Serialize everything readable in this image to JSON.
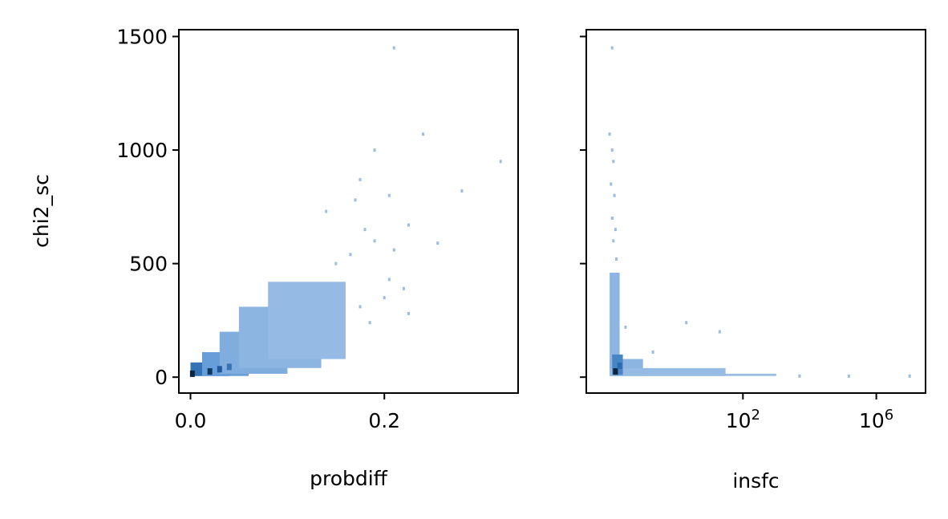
{
  "colors": {
    "background": "#ffffff",
    "bin_low": "#b3cdea",
    "bin_mid": "#5f98d6",
    "bin_high": "#1f5fa6",
    "bin_peak": "#0b2540"
  },
  "chart_data": [
    {
      "type": "heatmap",
      "xlabel": "probdiff",
      "ylabel": "chi2_sc",
      "xlim": [
        -0.012,
        0.338
      ],
      "ylim": [
        -70,
        1530
      ],
      "x_ticks": [
        {
          "value": 0.0,
          "label": "0.0"
        },
        {
          "value": 0.2,
          "label": "0.2"
        }
      ],
      "y_ticks": [
        {
          "value": 0,
          "label": "0"
        },
        {
          "value": 500,
          "label": "500"
        },
        {
          "value": 1000,
          "label": "1000"
        },
        {
          "value": 1500,
          "label": "1500"
        }
      ],
      "regions": [
        {
          "x0": 0.0,
          "x1": 0.04,
          "y0": 5,
          "y1": 65,
          "level": 0.55
        },
        {
          "x0": 0.012,
          "x1": 0.06,
          "y0": 5,
          "y1": 110,
          "level": 0.3
        },
        {
          "x0": 0.03,
          "x1": 0.1,
          "y0": 15,
          "y1": 200,
          "level": 0.2
        },
        {
          "x0": 0.05,
          "x1": 0.135,
          "y0": 40,
          "y1": 310,
          "level": 0.15
        },
        {
          "x0": 0.08,
          "x1": 0.16,
          "y0": 80,
          "y1": 420,
          "level": 0.12
        }
      ],
      "scattered_bins": [
        {
          "x": 0.21,
          "y": 1450
        },
        {
          "x": 0.24,
          "y": 1070
        },
        {
          "x": 0.19,
          "y": 1000
        },
        {
          "x": 0.32,
          "y": 950
        },
        {
          "x": 0.175,
          "y": 870
        },
        {
          "x": 0.28,
          "y": 820
        },
        {
          "x": 0.205,
          "y": 800
        },
        {
          "x": 0.17,
          "y": 780
        },
        {
          "x": 0.14,
          "y": 730
        },
        {
          "x": 0.225,
          "y": 670
        },
        {
          "x": 0.18,
          "y": 650
        },
        {
          "x": 0.19,
          "y": 600
        },
        {
          "x": 0.255,
          "y": 590
        },
        {
          "x": 0.21,
          "y": 560
        },
        {
          "x": 0.165,
          "y": 540
        },
        {
          "x": 0.15,
          "y": 500
        },
        {
          "x": 0.205,
          "y": 430
        },
        {
          "x": 0.22,
          "y": 390
        },
        {
          "x": 0.2,
          "y": 350
        },
        {
          "x": 0.225,
          "y": 280
        },
        {
          "x": 0.185,
          "y": 240
        },
        {
          "x": 0.175,
          "y": 310
        }
      ],
      "hot_bins": [
        {
          "x": 0.002,
          "y": 15,
          "level": 1.0
        },
        {
          "x": 0.02,
          "y": 25,
          "level": 0.9
        },
        {
          "x": 0.03,
          "y": 35,
          "level": 0.7
        },
        {
          "x": 0.04,
          "y": 45,
          "level": 0.55
        }
      ]
    },
    {
      "type": "heatmap",
      "xlabel": "insfc",
      "ylabel": "",
      "xscale": "log",
      "xlim": [
        0.002,
        30000000
      ],
      "ylim": [
        -70,
        1530
      ],
      "x_ticks": [
        {
          "value": 100,
          "label": "10",
          "exponent": "2"
        },
        {
          "value": 1000000,
          "label": "10",
          "exponent": "6"
        }
      ],
      "y_ticks": [
        {
          "value": 0,
          "label": ""
        },
        {
          "value": 500,
          "label": ""
        },
        {
          "value": 1000,
          "label": ""
        },
        {
          "value": 1500,
          "label": ""
        }
      ],
      "regions": [
        {
          "x0": 0.01,
          "x1": 0.02,
          "y0": 5,
          "y1": 460,
          "level": 0.15
        },
        {
          "x0": 0.01,
          "x1": 0.1,
          "y0": 5,
          "y1": 80,
          "level": 0.15
        },
        {
          "x0": 0.01,
          "x1": 30,
          "y0": 5,
          "y1": 40,
          "level": 0.12
        },
        {
          "x0": 0.01,
          "x1": 1000,
          "y0": 5,
          "y1": 15,
          "level": 0.1
        },
        {
          "x0": 0.012,
          "x1": 0.025,
          "y0": 10,
          "y1": 100,
          "level": 0.45
        }
      ],
      "scattered_bins": [
        {
          "x": 0.012,
          "y": 1450
        },
        {
          "x": 0.01,
          "y": 1070
        },
        {
          "x": 0.012,
          "y": 1000
        },
        {
          "x": 0.013,
          "y": 950
        },
        {
          "x": 0.011,
          "y": 850
        },
        {
          "x": 0.014,
          "y": 800
        },
        {
          "x": 0.012,
          "y": 700
        },
        {
          "x": 0.015,
          "y": 650
        },
        {
          "x": 0.013,
          "y": 600
        },
        {
          "x": 0.016,
          "y": 520
        },
        {
          "x": 0.03,
          "y": 220
        },
        {
          "x": 2,
          "y": 240
        },
        {
          "x": 20,
          "y": 200
        },
        {
          "x": 0.2,
          "y": 110
        },
        {
          "x": 5000,
          "y": 5
        },
        {
          "x": 150000,
          "y": 5
        },
        {
          "x": 10000000,
          "y": 5
        }
      ],
      "hot_bins": [
        {
          "x": 0.015,
          "y": 25,
          "level": 1.0
        },
        {
          "x": 0.02,
          "y": 50,
          "level": 0.6
        }
      ]
    }
  ]
}
